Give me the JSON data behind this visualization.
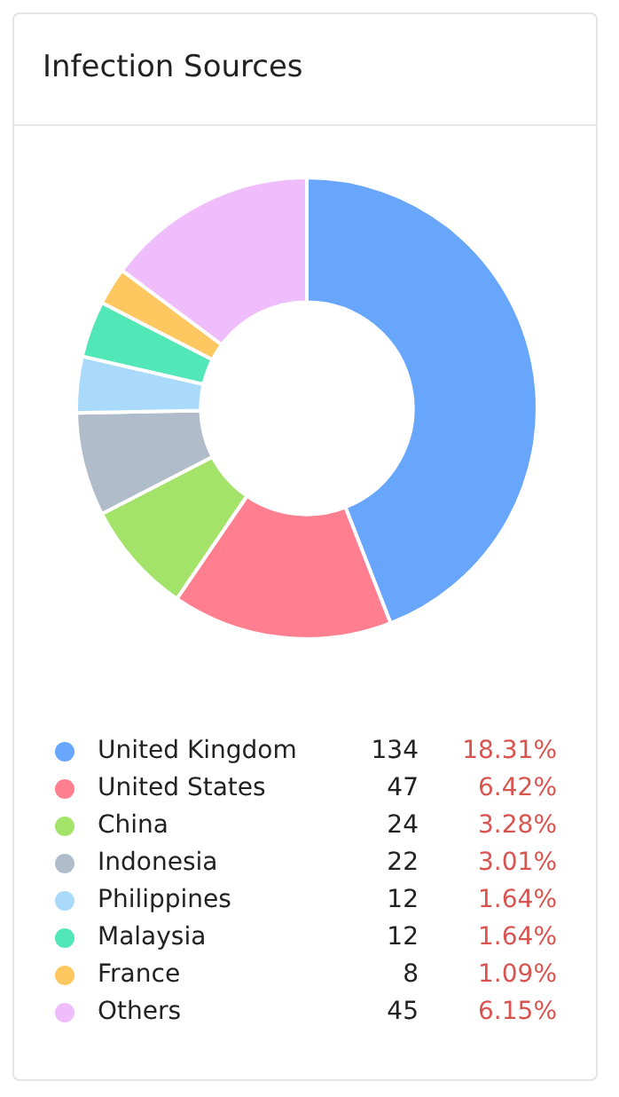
{
  "chart_data": {
    "type": "donut",
    "title": "Infection Sources",
    "categories": [
      "United Kingdom",
      "United States",
      "China",
      "Indonesia",
      "Philippines",
      "Malaysia",
      "France",
      "Others"
    ],
    "values": [
      134,
      47,
      24,
      22,
      12,
      12,
      8,
      45
    ],
    "colors": [
      "#68a6fc",
      "#ff7e8f",
      "#a3e36a",
      "#b1bccb",
      "#a9d9fb",
      "#51e7b6",
      "#fec760",
      "#efbdfc"
    ],
    "value_labels": [
      "134",
      "47",
      "24",
      "22",
      "12",
      "12",
      "8",
      "45"
    ],
    "annotations": [
      "18.31%",
      "6.42%",
      "3.28%",
      "3.01%",
      "1.64%",
      "1.64%",
      "1.09%",
      "6.15%"
    ],
    "legend": "bottom"
  }
}
